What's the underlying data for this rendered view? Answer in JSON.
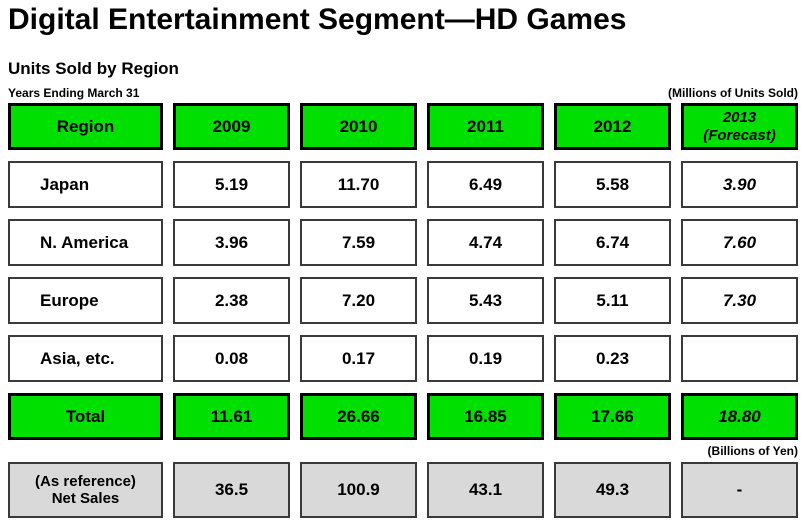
{
  "title": "Digital Entertainment Segment—HD Games",
  "subtitle": "Units Sold by Region",
  "captions": {
    "left": "Years Ending March 31",
    "units_note": "(Millions of Units Sold)",
    "yen_note": "(Billions of Yen)"
  },
  "colors": {
    "header_green": "#00E000",
    "cell_gray": "#D9D9D9"
  },
  "table": {
    "header": {
      "region": "Region",
      "years": [
        "2009",
        "2010",
        "2011",
        "2012"
      ],
      "forecast_line1": "2013",
      "forecast_line2": "(Forecast)"
    },
    "rows": [
      {
        "region": "Japan",
        "values": [
          "5.19",
          "11.70",
          "6.49",
          "5.58"
        ],
        "forecast": "3.90"
      },
      {
        "region": "N. America",
        "values": [
          "3.96",
          "7.59",
          "4.74",
          "6.74"
        ],
        "forecast": "7.60"
      },
      {
        "region": "Europe",
        "values": [
          "2.38",
          "7.20",
          "5.43",
          "5.11"
        ],
        "forecast": "7.30"
      },
      {
        "region": "Asia, etc.",
        "values": [
          "0.08",
          "0.17",
          "0.19",
          "0.23"
        ],
        "forecast": ""
      }
    ],
    "total": {
      "label": "Total",
      "values": [
        "11.61",
        "26.66",
        "16.85",
        "17.66"
      ],
      "forecast": "18.80"
    },
    "net_sales": {
      "label_line1": "(As reference)",
      "label_line2": "Net Sales",
      "values": [
        "36.5",
        "100.9",
        "43.1",
        "49.3"
      ],
      "forecast": "-"
    }
  }
}
